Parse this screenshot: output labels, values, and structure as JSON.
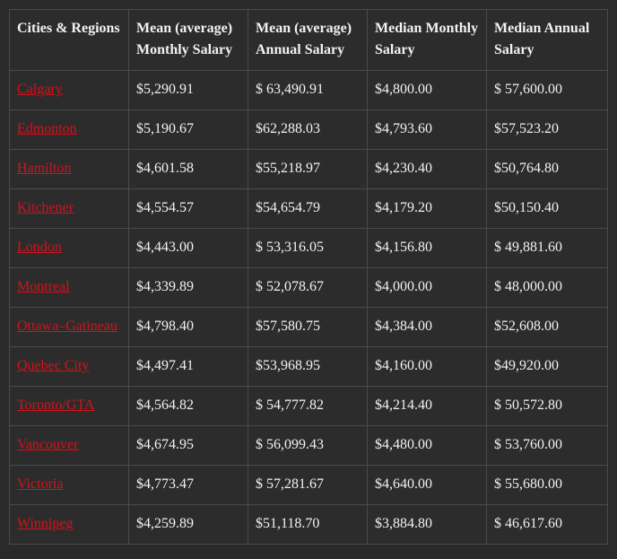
{
  "table": {
    "header": [
      "Cities & Regions",
      "Mean (average) Monthly Salary",
      "Mean (average) Annual Salary",
      "Median Monthly Salary",
      "Median Annual Salary"
    ],
    "rows": [
      [
        "Calgary",
        "$5,290.91",
        "$ 63,490.91",
        "$4,800.00",
        "$ 57,600.00"
      ],
      [
        "Edmonton",
        "$5,190.67",
        "$62,288.03",
        "$4,793.60",
        "$57,523.20"
      ],
      [
        "Hamilton",
        "$4,601.58",
        "$55,218.97",
        "$4,230.40",
        "$50,764.80"
      ],
      [
        "Kitchener",
        "$4,554.57",
        "$54,654.79",
        "$4,179.20",
        "$50,150.40"
      ],
      [
        "London",
        "$4,443.00",
        "$ 53,316.05",
        "$4,156.80",
        "$ 49,881.60"
      ],
      [
        "Montreal",
        "$4,339.89",
        "$ 52,078.67",
        "$4,000.00",
        "$ 48,000.00"
      ],
      [
        "Ottawa–Gatineau",
        "$4,798.40",
        "$57,580.75",
        "$4,384.00",
        "$52,608.00"
      ],
      [
        "Quebec City",
        "$4,497.41",
        "$53,968.95",
        "$4,160.00",
        "$49,920.00"
      ],
      [
        "Toronto/GTA",
        "$4,564.82",
        "$ 54,777.82",
        "$4,214.40",
        "$ 50,572.80"
      ],
      [
        "Vancouver",
        "$4,674.95",
        "$ 56,099.43",
        "$4,480.00",
        "$ 53,760.00"
      ],
      [
        "Victoria",
        "$4,773.47",
        "$ 57,281.67",
        "$4,640.00",
        "$ 55,680.00"
      ],
      [
        "Winnipeg",
        "$4,259.89",
        "$51,118.70",
        "$3,884.80",
        "$ 46,617.60"
      ]
    ]
  }
}
